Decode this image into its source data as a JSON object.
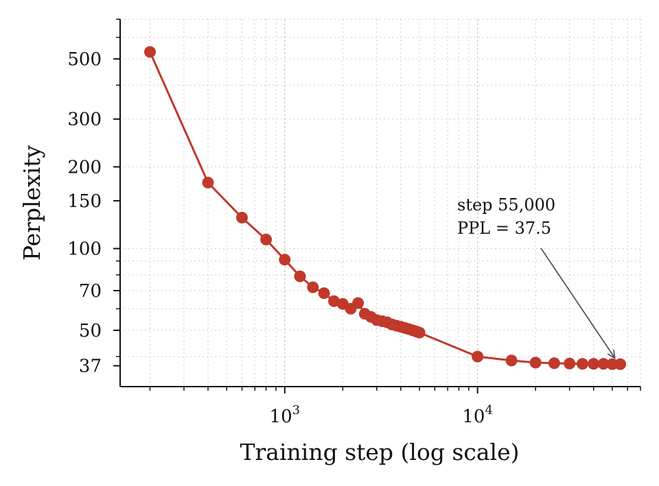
{
  "chart_data": {
    "type": "line",
    "xlabel": "Training step (log scale)",
    "ylabel": "Perplexity",
    "xscale": "log",
    "yscale": "log",
    "xlim": [
      140,
      70000
    ],
    "ylim": [
      31,
      700
    ],
    "grid": true,
    "colors": {
      "line": "#c0392b",
      "arrow": "#555555",
      "grid": "#d3d3d3"
    },
    "x_ticks": [
      {
        "value": 1000,
        "base": "10",
        "exp": "3"
      },
      {
        "value": 10000,
        "base": "10",
        "exp": "4"
      }
    ],
    "y_ticks": [
      {
        "value": 37,
        "label": "37"
      },
      {
        "value": 50,
        "label": "50"
      },
      {
        "value": 70,
        "label": "70"
      },
      {
        "value": 100,
        "label": "100"
      },
      {
        "value": 150,
        "label": "150"
      },
      {
        "value": 200,
        "label": "200"
      },
      {
        "value": 300,
        "label": "300"
      },
      {
        "value": 500,
        "label": "500"
      }
    ],
    "series": [
      {
        "x": [
          200,
          400,
          600,
          800,
          1000,
          1200,
          1400,
          1600,
          1800,
          2000,
          2200,
          2400,
          2600,
          2800,
          3000,
          3200,
          3400,
          3600,
          3800,
          4000,
          4200,
          4400,
          4600,
          4800,
          5000,
          10000,
          15000,
          20000,
          25000,
          30000,
          35000,
          40000,
          45000,
          50000,
          55000
        ],
        "y": [
          530,
          175,
          130,
          108,
          91,
          79,
          72,
          68.5,
          64,
          62.5,
          60,
          63,
          57.5,
          56,
          54.5,
          54,
          53.5,
          52.5,
          52,
          51.5,
          51,
          50.5,
          50,
          49.5,
          49,
          40,
          38.7,
          38,
          37.8,
          37.7,
          37.6,
          37.6,
          37.6,
          37.5,
          37.5
        ]
      }
    ],
    "annotation": {
      "lines": [
        "step 55,000",
        "PPL = 37.5"
      ],
      "target_x": 55000,
      "target_y": 37.5
    }
  }
}
